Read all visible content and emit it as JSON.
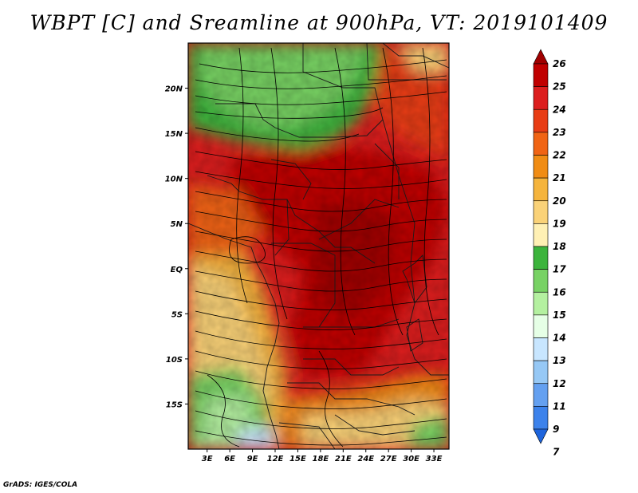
{
  "title": "WBPT [C] and Sreamline at 900hPa, VT: 2019101409",
  "credit": "GrADS: IGES/COLA",
  "axes": {
    "lon_ticks": [
      "3E",
      "6E",
      "9E",
      "12E",
      "15E",
      "18E",
      "21E",
      "24E",
      "27E",
      "30E",
      "33E"
    ],
    "lon_values": [
      3,
      6,
      9,
      12,
      15,
      18,
      21,
      24,
      27,
      30,
      33
    ],
    "lat_ticks": [
      "20N",
      "15N",
      "10N",
      "5N",
      "EQ",
      "5S",
      "10S",
      "15S"
    ],
    "lat_values": [
      20,
      15,
      10,
      5,
      0,
      -5,
      -10,
      -15
    ],
    "lon_range": [
      0.5,
      35
    ],
    "lat_range": [
      -20,
      25
    ]
  },
  "colorbar": {
    "labels": [
      "26",
      "25",
      "24",
      "23",
      "22",
      "21",
      "20",
      "19",
      "18",
      "17",
      "16",
      "15",
      "14",
      "13",
      "12",
      "11",
      "9",
      "7"
    ],
    "colors": [
      "#a00000",
      "#c00000",
      "#dc1e1e",
      "#e83c14",
      "#f06414",
      "#f08c14",
      "#f5b43c",
      "#fad278",
      "#fff0b4",
      "#3cb43c",
      "#78d264",
      "#b4f0a0",
      "#e6ffe6",
      "#c8e6ff",
      "#96c8f5",
      "#64a0f0",
      "#3c82eb",
      "#1e64dc"
    ]
  },
  "regions": {
    "north": "green (17-18C) over the Sahel/Sahara",
    "central": "red (23-25C) across West/Central Africa",
    "south_west": "orange-yellow (19-22C) over Angola coast",
    "south_east": "green (16-18C) at southern edge"
  }
}
